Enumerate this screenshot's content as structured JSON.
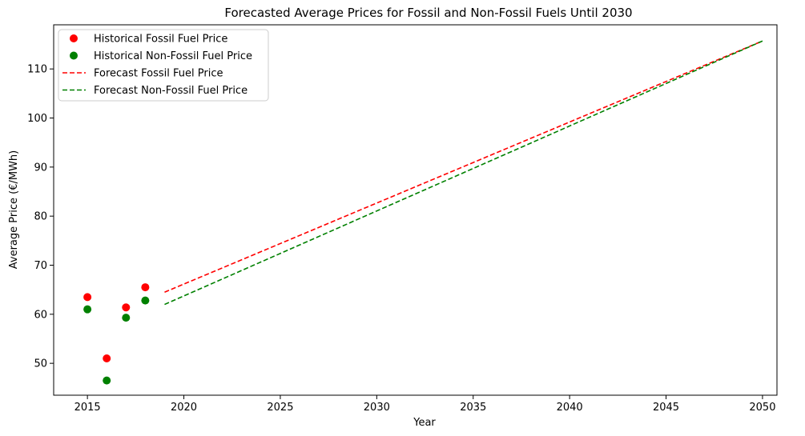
{
  "chart_data": {
    "type": "scatter",
    "title": "Forecasted Average Prices for Fossil and Non-Fossil Fuels Until 2030",
    "xlabel": "Year",
    "ylabel": "Average Price (€/MWh)",
    "xlim": [
      2013.25,
      2050.75
    ],
    "ylim": [
      43.5,
      119.0
    ],
    "xticks": [
      2015,
      2020,
      2025,
      2030,
      2035,
      2040,
      2045,
      2050
    ],
    "yticks": [
      50,
      60,
      70,
      80,
      90,
      100,
      110
    ],
    "grid": false,
    "legend_position": "top-left",
    "series": [
      {
        "name": "Historical Fossil Fuel Price",
        "kind": "scatter",
        "color": "#ff0000",
        "x": [
          2015,
          2016,
          2017,
          2018
        ],
        "y": [
          63.5,
          51.0,
          61.4,
          65.5
        ]
      },
      {
        "name": "Historical Non-Fossil Fuel Price",
        "kind": "scatter",
        "color": "#008000",
        "x": [
          2015,
          2016,
          2017,
          2018
        ],
        "y": [
          61.0,
          46.5,
          59.3,
          62.8
        ]
      },
      {
        "name": "Forecast Fossil Fuel Price",
        "kind": "dashed-line",
        "color": "#ff0000",
        "x": [
          2019,
          2050
        ],
        "y": [
          64.5,
          115.7
        ]
      },
      {
        "name": "Forecast Non-Fossil Fuel Price",
        "kind": "dashed-line",
        "color": "#008000",
        "x": [
          2019,
          2050
        ],
        "y": [
          62.0,
          115.7
        ]
      }
    ]
  }
}
